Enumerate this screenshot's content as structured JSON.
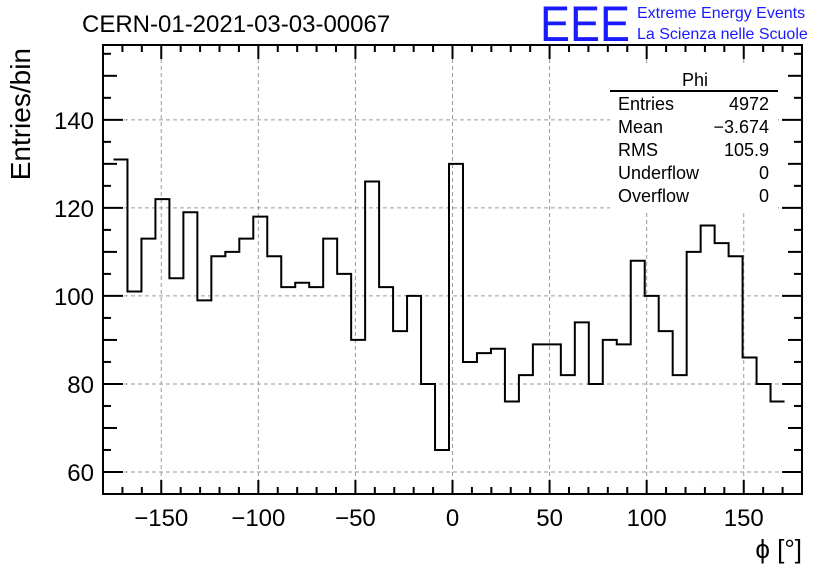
{
  "title": "CERN-01-2021-03-03-00067",
  "logo": {
    "mark": "EEE",
    "line1": "Extreme Energy Events",
    "line2": "La Scienza nelle Scuole",
    "color": "#1a1aff"
  },
  "stats_box": {
    "name": "Phi",
    "rows": [
      {
        "label": "Entries",
        "value": "4972"
      },
      {
        "label": "Mean",
        "value": "−3.674"
      },
      {
        "label": "RMS",
        "value": "105.9"
      },
      {
        "label": "Underflow",
        "value": "0"
      },
      {
        "label": "Overflow",
        "value": "0"
      }
    ]
  },
  "chart_data": {
    "type": "bar",
    "histogram": true,
    "title": "CERN-01-2021-03-03-00067",
    "xlabel": "ϕ [°]",
    "ylabel": "Entries/bin",
    "xlim": [
      -180,
      180
    ],
    "ylim": [
      55,
      157
    ],
    "bin_width": 7.2,
    "x_ticks": [
      -150,
      -100,
      -50,
      0,
      50,
      100,
      150
    ],
    "x_tick_labels": [
      "−150",
      "−100",
      "−50",
      "0",
      "50",
      "100",
      "150"
    ],
    "y_ticks": [
      60,
      80,
      100,
      120,
      140
    ],
    "grid": true,
    "line_color": "#000000",
    "bin_edges": [
      -174.6,
      -167.4,
      -160.2,
      -153.0,
      -145.8,
      -138.6,
      -131.4,
      -124.2,
      -117.0,
      -109.8,
      -102.6,
      -95.4,
      -88.2,
      -81.0,
      -73.8,
      -66.6,
      -59.4,
      -52.2,
      -45.0,
      -37.8,
      -30.6,
      -23.4,
      -16.2,
      -9.0,
      -1.8,
      5.4,
      12.6,
      19.8,
      27.0,
      34.2,
      41.4,
      48.6,
      55.8,
      63.0,
      70.2,
      77.4,
      84.6,
      91.8,
      99.0,
      106.2,
      113.4,
      120.6,
      127.8,
      135.0,
      142.2,
      149.4,
      156.6,
      163.8,
      171.0
    ],
    "values": [
      131,
      101,
      113,
      122,
      104,
      119,
      99,
      109,
      110,
      113,
      118,
      109,
      102,
      103,
      102,
      113,
      105,
      90,
      126,
      102,
      92,
      100,
      80,
      65,
      130,
      85,
      87,
      88,
      76,
      82,
      89,
      89,
      82,
      94,
      80,
      90,
      89,
      108,
      100,
      92,
      82,
      110,
      116,
      112,
      109,
      86,
      80,
      76
    ]
  }
}
